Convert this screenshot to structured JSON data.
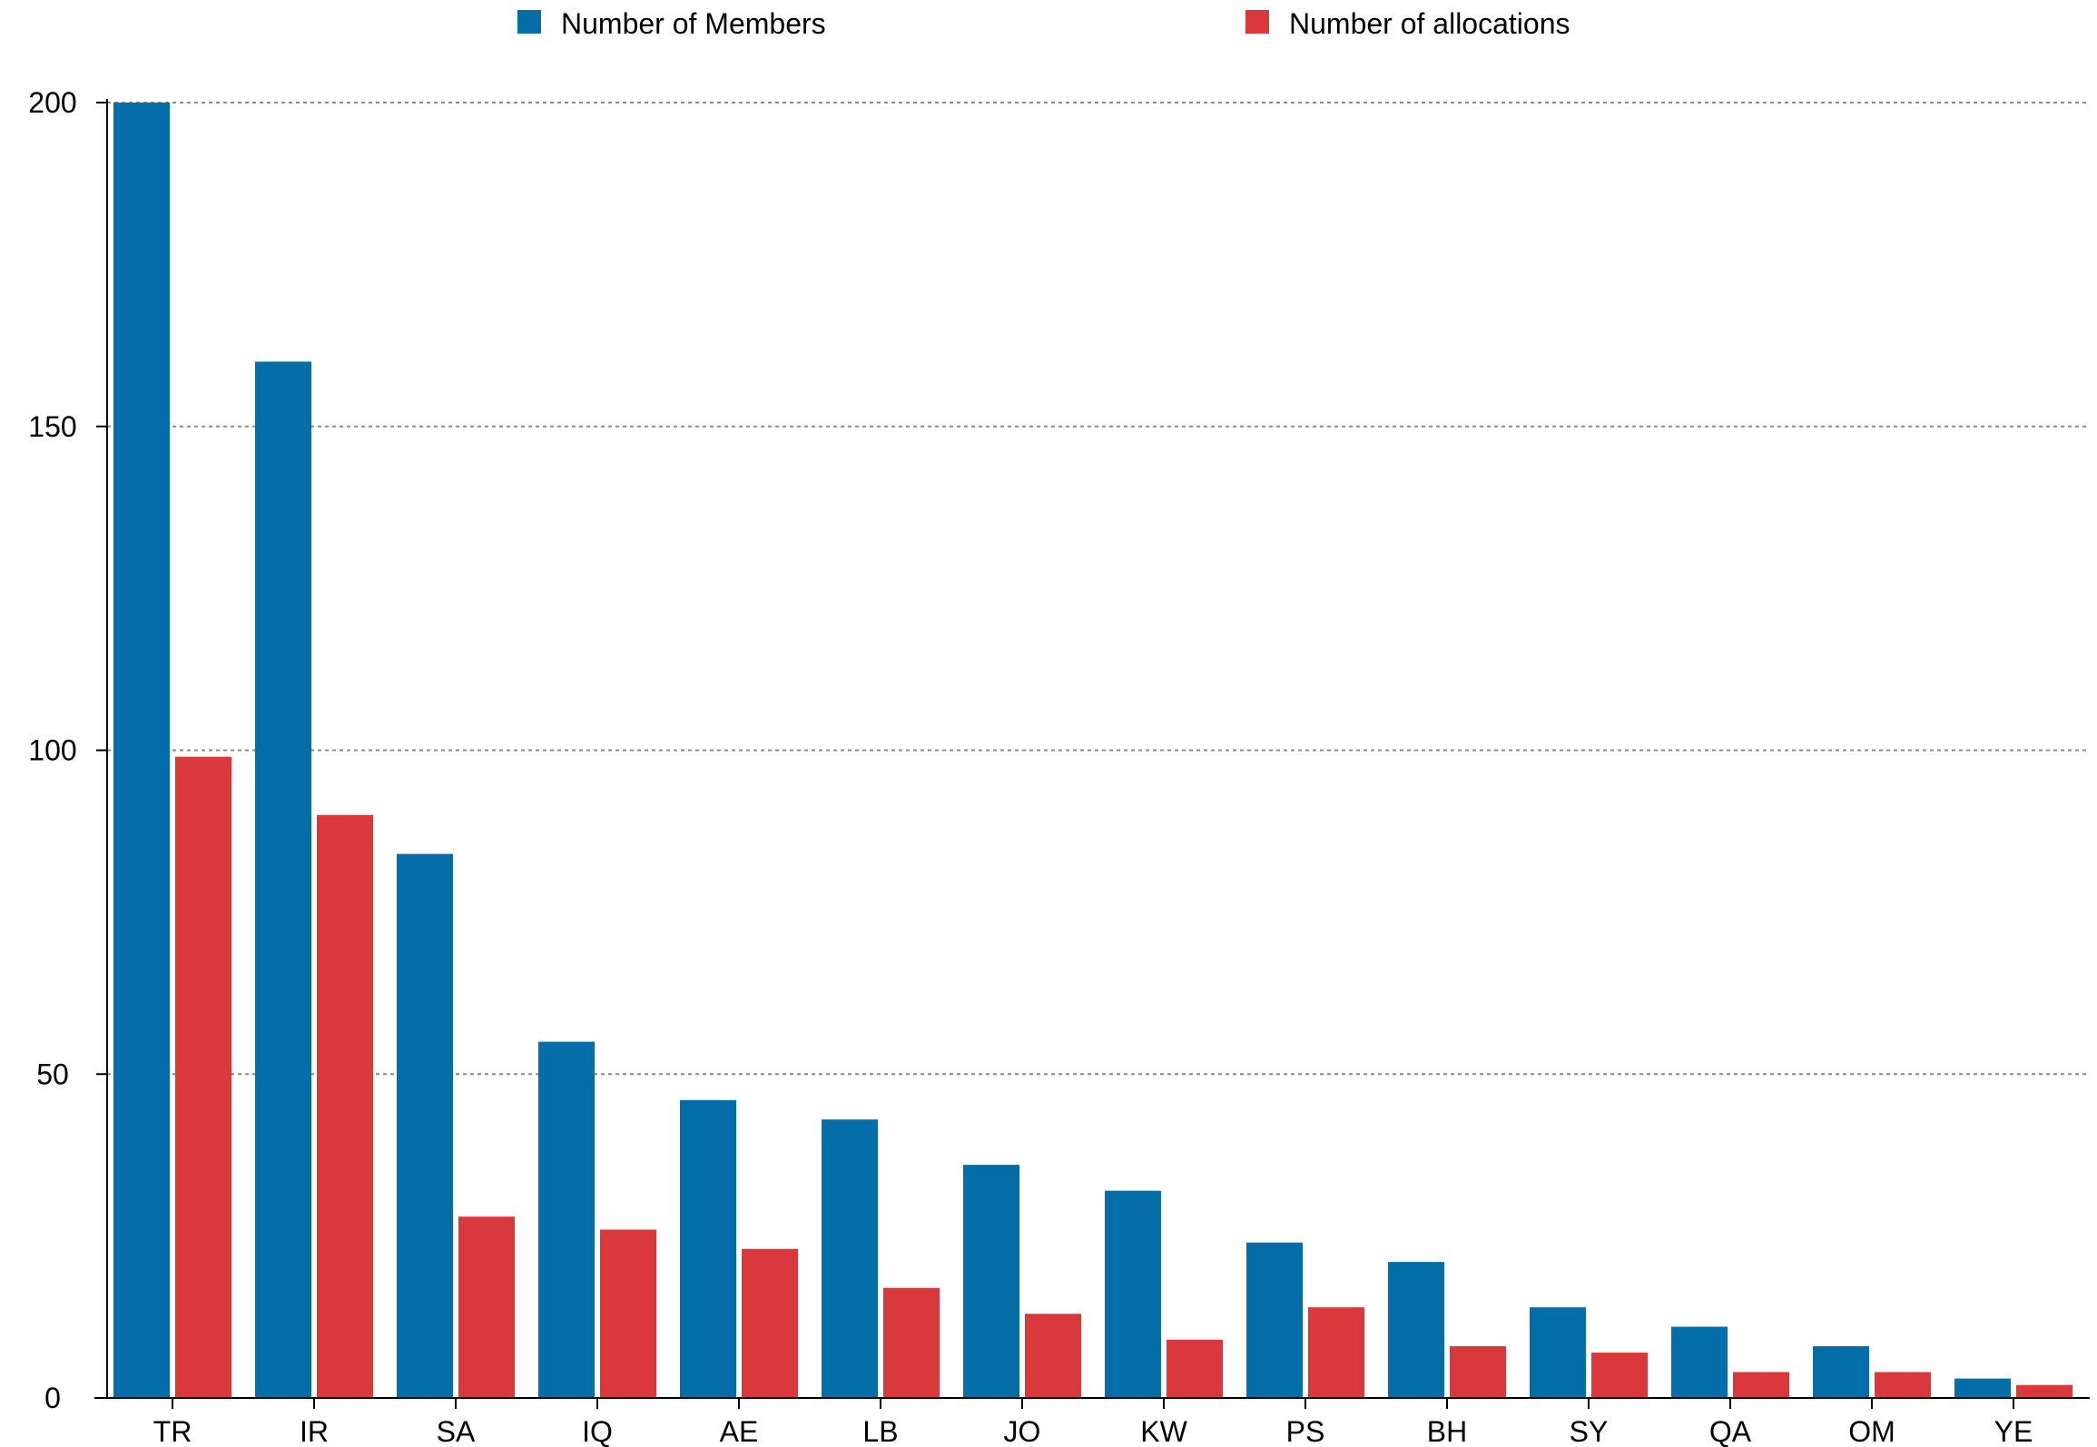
{
  "chart_data": {
    "type": "bar",
    "categories": [
      "TR",
      "IR",
      "SA",
      "IQ",
      "AE",
      "LB",
      "JO",
      "KW",
      "PS",
      "BH",
      "SY",
      "QA",
      "OM",
      "YE"
    ],
    "series": [
      {
        "name": "Number of Members",
        "color": "#056da8",
        "values": [
          200,
          160,
          84,
          55,
          46,
          43,
          36,
          32,
          24,
          21,
          14,
          11,
          8,
          3
        ]
      },
      {
        "name": "Number of allocations",
        "color": "#d9393d",
        "values": [
          99,
          90,
          28,
          26,
          23,
          17,
          13,
          9,
          14,
          8,
          7,
          4,
          4,
          2
        ]
      }
    ],
    "yticks": [
      "0",
      "50",
      "100",
      "150",
      "200"
    ],
    "ylim": [
      0,
      200
    ],
    "grid": true,
    "grid_style": "dotted",
    "legend_position": "top-center",
    "title": "",
    "xlabel": "",
    "ylabel": ""
  }
}
